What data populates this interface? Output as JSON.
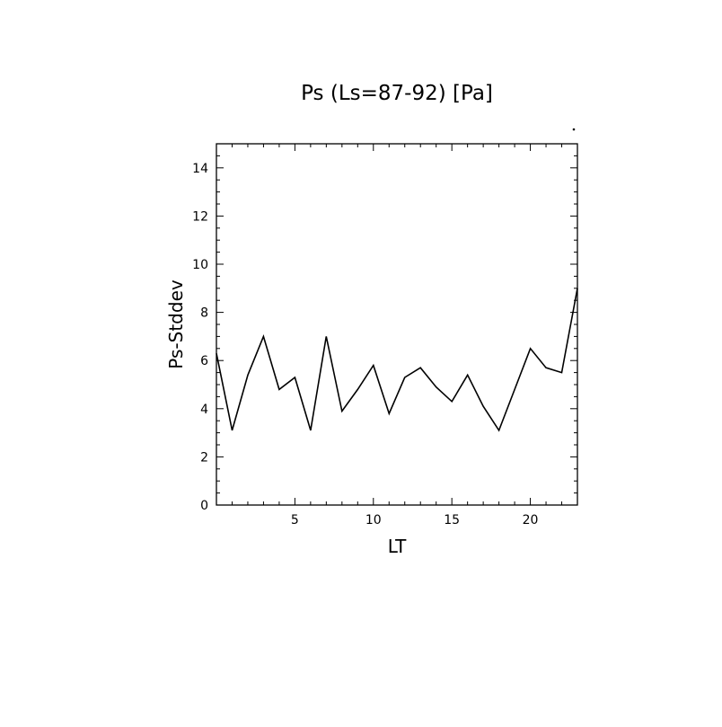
{
  "chart_data": {
    "type": "line",
    "title": "Ps (Ls=87-92) [Pa]",
    "xlabel": "LT",
    "ylabel": "Ps-Stddev",
    "xlim": [
      0,
      23
    ],
    "ylim": [
      0,
      15
    ],
    "xticks": [
      5,
      10,
      15,
      20
    ],
    "xtick_labels": [
      "5",
      "10",
      "15",
      "20"
    ],
    "yticks": [
      0,
      2,
      4,
      6,
      8,
      10,
      12,
      14
    ],
    "ytick_labels": [
      "0",
      "2",
      "4",
      "6",
      "8",
      "10",
      "12",
      "14"
    ],
    "grid": false,
    "series": [
      {
        "x": [
          0,
          1,
          2,
          3,
          4,
          5,
          6,
          7,
          8,
          9,
          10,
          11,
          12,
          13,
          14,
          15,
          16,
          17,
          18,
          19,
          20,
          21,
          22,
          23
        ],
        "values": [
          6.3,
          3.1,
          5.4,
          7.0,
          4.8,
          5.3,
          3.1,
          7.0,
          3.9,
          4.8,
          5.8,
          3.8,
          5.3,
          5.7,
          4.9,
          4.3,
          5.4,
          4.1,
          3.1,
          4.8,
          6.5,
          5.7,
          5.5,
          9.0
        ]
      }
    ],
    "color": "#000000"
  }
}
